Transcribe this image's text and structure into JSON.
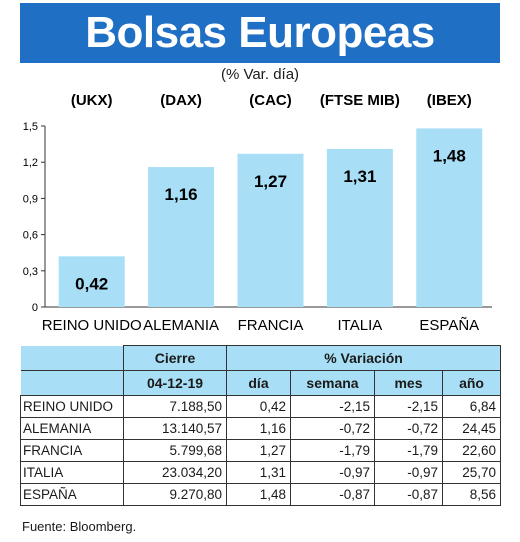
{
  "header": {
    "title": "Bolsas Europeas",
    "subtitle": "(% Var. día)"
  },
  "chart_data": {
    "type": "bar",
    "index_codes": [
      "(UKX)",
      "(DAX)",
      "(CAC)",
      "(FTSE MIB)",
      "(IBEX)"
    ],
    "categories": [
      "REINO UNIDO",
      "ALEMANIA",
      "FRANCIA",
      "ITALIA",
      "ESPAÑA"
    ],
    "values": [
      0.42,
      1.16,
      1.27,
      1.31,
      1.48
    ],
    "value_labels": [
      "0,42",
      "1,16",
      "1,27",
      "1,31",
      "1,48"
    ],
    "yticks": [
      "0",
      "0,3",
      "0,6",
      "0,9",
      "1,2",
      "1,5"
    ],
    "ylim": [
      0,
      1.5
    ],
    "bar_color": "#a9dff6"
  },
  "table": {
    "group_headers": {
      "close": "Cierre",
      "variation": "% Variación"
    },
    "sub_headers": {
      "date": "04-12-19",
      "day": "día",
      "week": "semana",
      "month": "mes",
      "year": "año"
    },
    "rows": [
      {
        "name": "REINO UNIDO",
        "close": "7.188,50",
        "day": "0,42",
        "week": "-2,15",
        "month": "-2,15",
        "year": "6,84"
      },
      {
        "name": "ALEMANIA",
        "close": "13.140,57",
        "day": "1,16",
        "week": "-0,72",
        "month": "-0,72",
        "year": "24,45"
      },
      {
        "name": "FRANCIA",
        "close": "5.799,68",
        "day": "1,27",
        "week": "-1,79",
        "month": "-1,79",
        "year": "22,60"
      },
      {
        "name": "ITALIA",
        "close": "23.034,20",
        "day": "1,31",
        "week": "-0,97",
        "month": "-0,97",
        "year": "25,70"
      },
      {
        "name": "ESPAÑA",
        "close": "9.270,80",
        "day": "1,48",
        "week": "-0,87",
        "month": "-0,87",
        "year": "8,56"
      }
    ]
  },
  "source": "Fuente: Bloomberg."
}
